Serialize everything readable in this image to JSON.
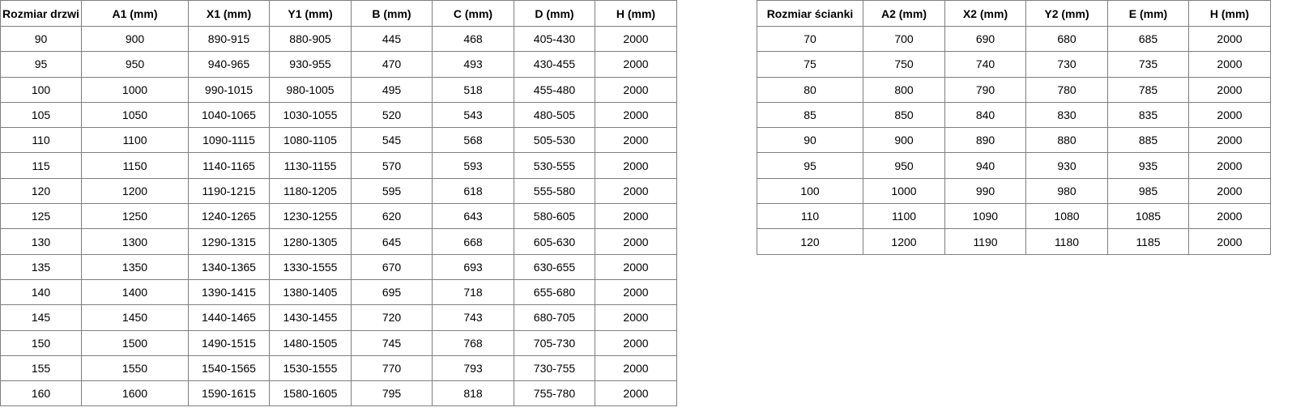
{
  "doors_table": {
    "headers": [
      "Rozmiar drzwi",
      "A1 (mm)",
      "X1 (mm)",
      "Y1 (mm)",
      "B (mm)",
      "C (mm)",
      "D (mm)",
      "H (mm)"
    ],
    "rows": [
      [
        "90",
        "900",
        "890-915",
        "880-905",
        "445",
        "468",
        "405-430",
        "2000"
      ],
      [
        "95",
        "950",
        "940-965",
        "930-955",
        "470",
        "493",
        "430-455",
        "2000"
      ],
      [
        "100",
        "1000",
        "990-1015",
        "980-1005",
        "495",
        "518",
        "455-480",
        "2000"
      ],
      [
        "105",
        "1050",
        "1040-1065",
        "1030-1055",
        "520",
        "543",
        "480-505",
        "2000"
      ],
      [
        "110",
        "1100",
        "1090-1115",
        "1080-1105",
        "545",
        "568",
        "505-530",
        "2000"
      ],
      [
        "115",
        "1150",
        "1140-1165",
        "1130-1155",
        "570",
        "593",
        "530-555",
        "2000"
      ],
      [
        "120",
        "1200",
        "1190-1215",
        "1180-1205",
        "595",
        "618",
        "555-580",
        "2000"
      ],
      [
        "125",
        "1250",
        "1240-1265",
        "1230-1255",
        "620",
        "643",
        "580-605",
        "2000"
      ],
      [
        "130",
        "1300",
        "1290-1315",
        "1280-1305",
        "645",
        "668",
        "605-630",
        "2000"
      ],
      [
        "135",
        "1350",
        "1340-1365",
        "1330-1555",
        "670",
        "693",
        "630-655",
        "2000"
      ],
      [
        "140",
        "1400",
        "1390-1415",
        "1380-1405",
        "695",
        "718",
        "655-680",
        "2000"
      ],
      [
        "145",
        "1450",
        "1440-1465",
        "1430-1455",
        "720",
        "743",
        "680-705",
        "2000"
      ],
      [
        "150",
        "1500",
        "1490-1515",
        "1480-1505",
        "745",
        "768",
        "705-730",
        "2000"
      ],
      [
        "155",
        "1550",
        "1540-1565",
        "1530-1555",
        "770",
        "793",
        "730-755",
        "2000"
      ],
      [
        "160",
        "1600",
        "1590-1615",
        "1580-1605",
        "795",
        "818",
        "755-780",
        "2000"
      ]
    ]
  },
  "wall_table": {
    "headers": [
      "Rozmiar ścianki",
      "A2 (mm)",
      "X2 (mm)",
      "Y2 (mm)",
      "E (mm)",
      "H (mm)"
    ],
    "rows": [
      [
        "70",
        "700",
        "690",
        "680",
        "685",
        "2000"
      ],
      [
        "75",
        "750",
        "740",
        "730",
        "735",
        "2000"
      ],
      [
        "80",
        "800",
        "790",
        "780",
        "785",
        "2000"
      ],
      [
        "85",
        "850",
        "840",
        "830",
        "835",
        "2000"
      ],
      [
        "90",
        "900",
        "890",
        "880",
        "885",
        "2000"
      ],
      [
        "95",
        "950",
        "940",
        "930",
        "935",
        "2000"
      ],
      [
        "100",
        "1000",
        "990",
        "980",
        "985",
        "2000"
      ],
      [
        "110",
        "1100",
        "1090",
        "1080",
        "1085",
        "2000"
      ],
      [
        "120",
        "1200",
        "1190",
        "1180",
        "1185",
        "2000"
      ]
    ]
  }
}
